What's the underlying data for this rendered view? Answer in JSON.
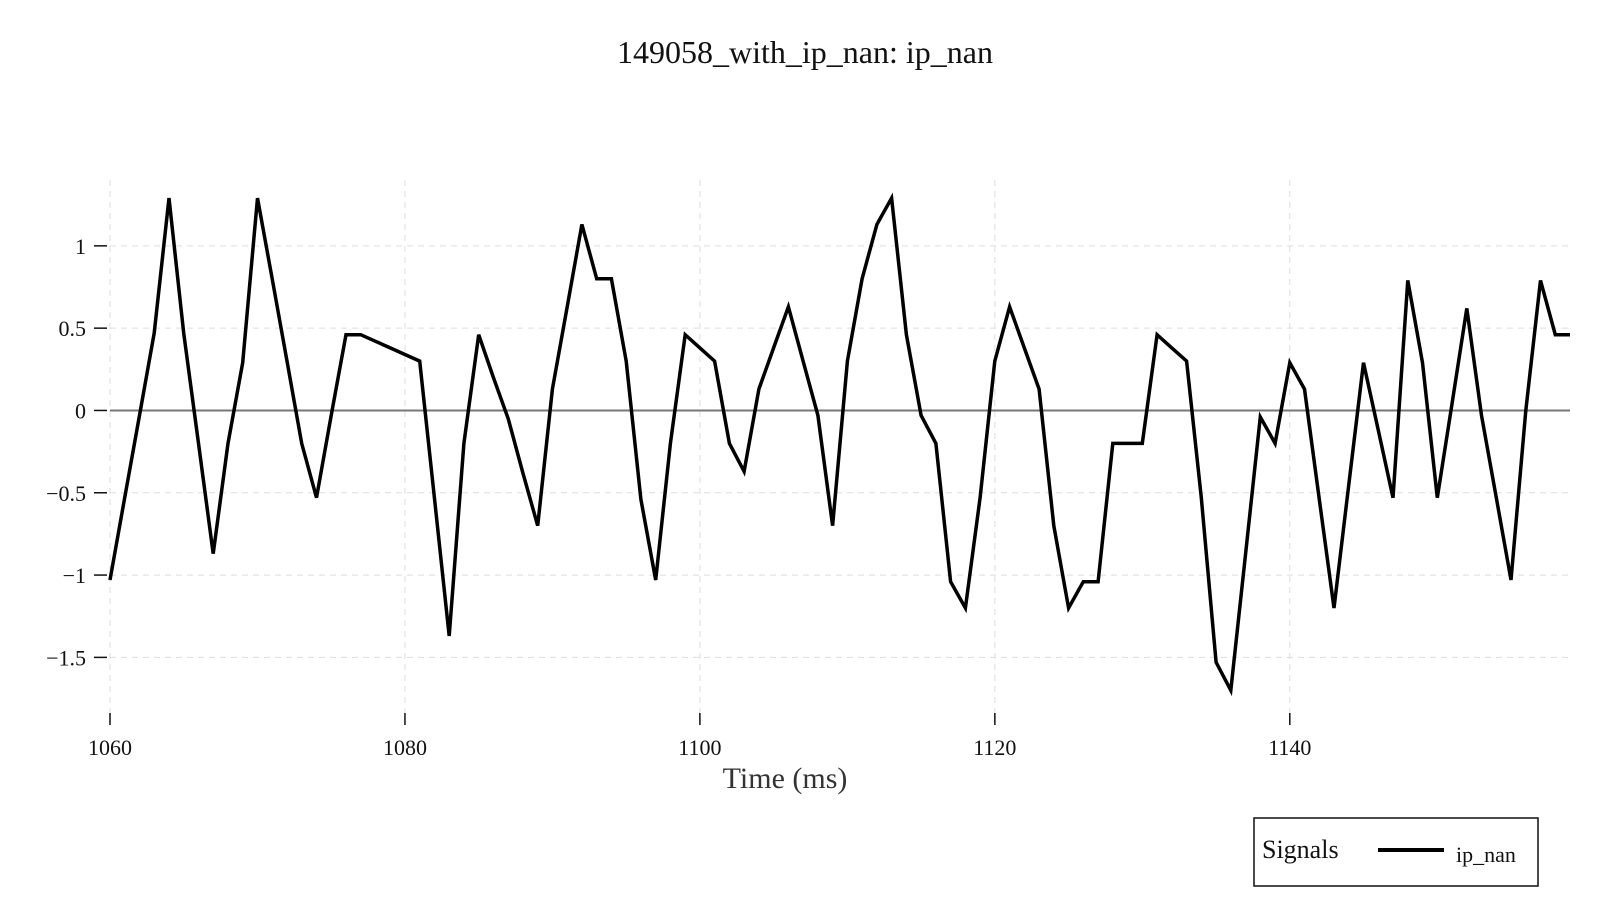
{
  "chart_data": {
    "type": "line",
    "title": "149058_with_ip_nan: ip_nan",
    "xlabel": "Time (ms)",
    "ylabel": "",
    "xlim": [
      1060,
      1159
    ],
    "ylim": [
      -1.85,
      1.4
    ],
    "x_ticks": [
      1060,
      1080,
      1100,
      1120,
      1140
    ],
    "x_tick_labels": [
      "1060",
      "1080",
      "1100",
      "1120",
      "1140"
    ],
    "y_ticks": [
      -1.5,
      -1,
      -0.5,
      0,
      0.5,
      1
    ],
    "y_tick_labels": [
      "−1.5",
      "−1",
      "−0.5",
      "0",
      "0.5",
      "1"
    ],
    "grid": true,
    "zero_line": true,
    "legend": {
      "title": "Signals",
      "placement": "bottom-right"
    },
    "series": [
      {
        "name": "ip_nan",
        "color": "#000000",
        "x": [
          1060,
          1061,
          1062,
          1063,
          1064,
          1065,
          1066,
          1067,
          1068,
          1069,
          1070,
          1071,
          1072,
          1073,
          1074,
          1075,
          1076,
          1077,
          1078,
          1079,
          1080,
          1081,
          1082,
          1083,
          1084,
          1085,
          1086,
          1087,
          1088,
          1089,
          1090,
          1091,
          1092,
          1093,
          1094,
          1095,
          1096,
          1097,
          1098,
          1099,
          1100,
          1101,
          1102,
          1103,
          1104,
          1105,
          1106,
          1107,
          1108,
          1109,
          1110,
          1111,
          1112,
          1113,
          1114,
          1115,
          1116,
          1117,
          1118,
          1119,
          1120,
          1121,
          1122,
          1123,
          1124,
          1125,
          1126,
          1127,
          1128,
          1129,
          1130,
          1131,
          1132,
          1133,
          1134,
          1135,
          1136,
          1137,
          1138,
          1139,
          1140,
          1141,
          1142,
          1143,
          1144,
          1145,
          1146,
          1147,
          1148,
          1149,
          1150,
          1151,
          1152,
          1153,
          1154,
          1155,
          1156,
          1157,
          1158,
          1159
        ],
        "y": [
          -1.03,
          -0.53,
          -0.03,
          0.47,
          1.29,
          0.47,
          -0.2,
          -0.87,
          -0.2,
          0.29,
          1.29,
          0.8,
          0.3,
          -0.2,
          -0.53,
          -0.03,
          0.46,
          0.46,
          0.42,
          0.38,
          0.34,
          0.3,
          -0.53,
          -1.37,
          -0.2,
          0.46,
          0.2,
          -0.05,
          -0.38,
          -0.7,
          0.13,
          0.63,
          1.13,
          0.8,
          0.8,
          0.3,
          -0.54,
          -1.03,
          -0.2,
          0.46,
          0.38,
          0.3,
          -0.2,
          -0.37,
          0.13,
          0.38,
          0.63,
          0.3,
          -0.03,
          -0.7,
          0.3,
          0.8,
          1.13,
          1.29,
          0.46,
          -0.03,
          -0.2,
          -1.04,
          -1.2,
          -0.53,
          0.3,
          0.63,
          0.38,
          0.13,
          -0.7,
          -1.2,
          -1.04,
          -1.04,
          -0.2,
          -0.2,
          -0.2,
          0.46,
          0.38,
          0.3,
          -0.53,
          -1.53,
          -1.7,
          -0.87,
          -0.04,
          -0.2,
          0.29,
          0.13,
          -0.54,
          -1.2,
          -0.45,
          0.29,
          -0.12,
          -0.53,
          0.79,
          0.29,
          -0.53,
          0.04,
          0.62,
          -0.03,
          -0.53,
          -1.03,
          0.0,
          0.79,
          0.46,
          0.46
        ]
      }
    ]
  }
}
